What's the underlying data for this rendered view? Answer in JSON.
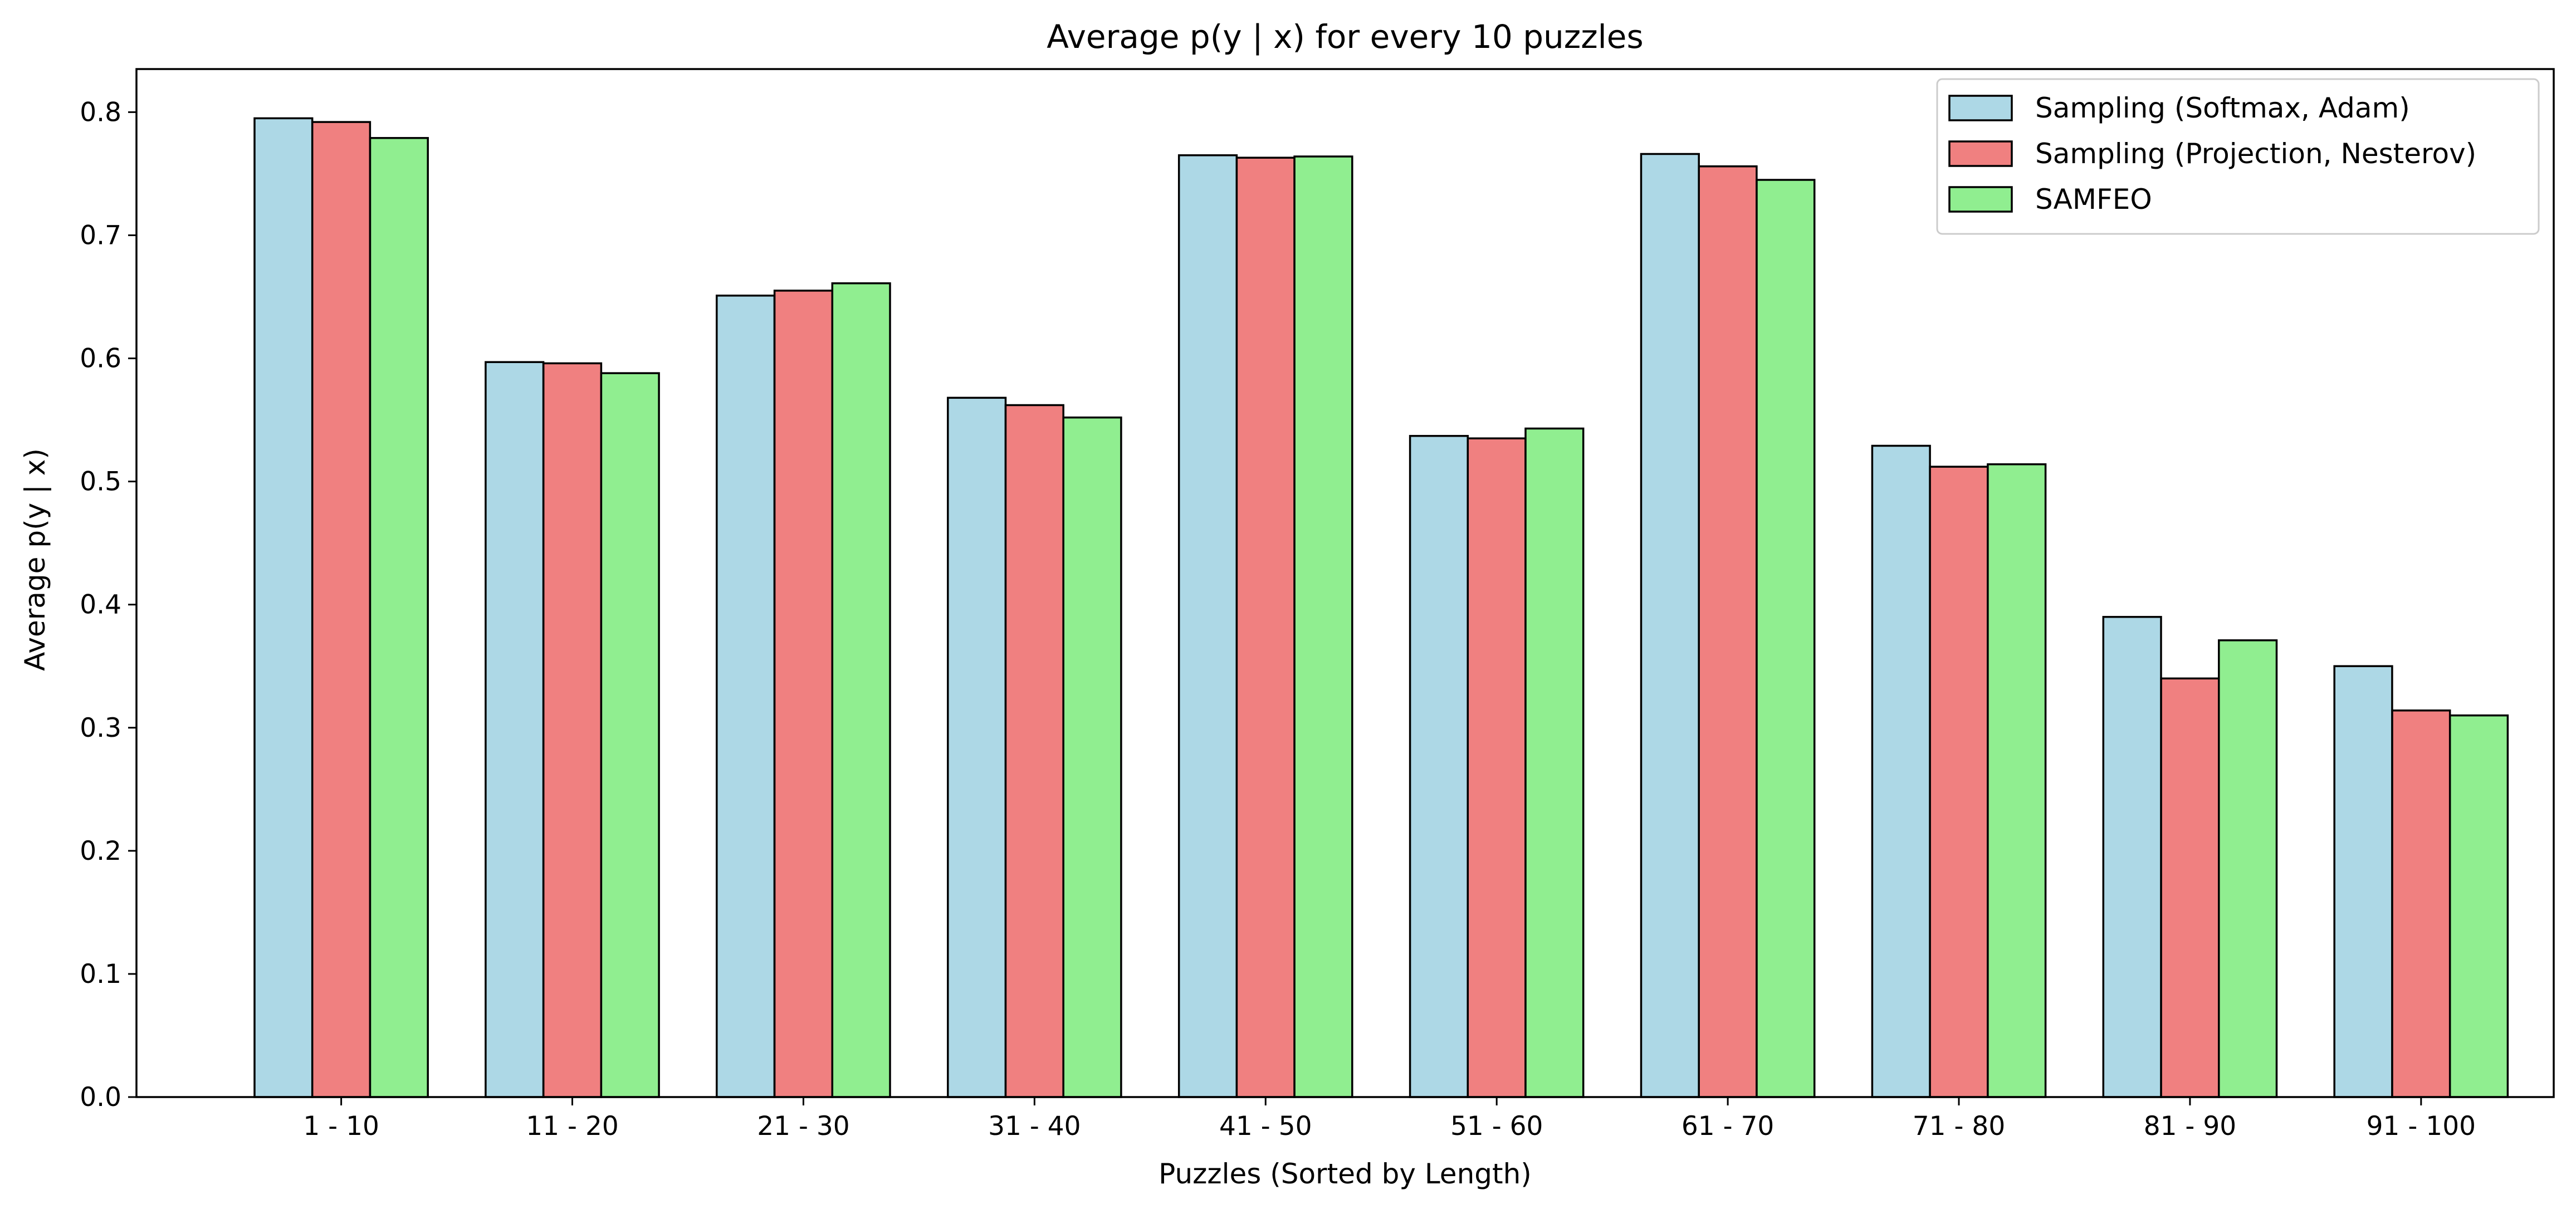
{
  "chart_data": {
    "type": "bar",
    "title": "Average p(y | x) for every 10 puzzles",
    "xlabel": "Puzzles (Sorted by Length)",
    "ylabel": "Average p(y | x)",
    "ylim": [
      0,
      0.835
    ],
    "yticks": [
      "0.0",
      "0.1",
      "0.2",
      "0.3",
      "0.4",
      "0.5",
      "0.6",
      "0.7",
      "0.8"
    ],
    "grid": false,
    "legend_position": "top-right",
    "categories": [
      "1 - 10",
      "11 - 20",
      "21 - 30",
      "31 - 40",
      "41 - 50",
      "51 - 60",
      "61 - 70",
      "71 - 80",
      "81 - 90",
      "91 - 100"
    ],
    "series": [
      {
        "name": "Sampling (Softmax, Adam)",
        "color": "#add8e6",
        "values": [
          0.795,
          0.597,
          0.651,
          0.568,
          0.765,
          0.537,
          0.766,
          0.529,
          0.39,
          0.35
        ]
      },
      {
        "name": "Sampling (Projection, Nesterov)",
        "color": "#f08080",
        "values": [
          0.792,
          0.596,
          0.655,
          0.562,
          0.763,
          0.535,
          0.756,
          0.512,
          0.34,
          0.314
        ]
      },
      {
        "name": "SAMFEO",
        "color": "#90ee90",
        "values": [
          0.779,
          0.588,
          0.661,
          0.552,
          0.764,
          0.543,
          0.745,
          0.514,
          0.371,
          0.31
        ]
      }
    ]
  }
}
